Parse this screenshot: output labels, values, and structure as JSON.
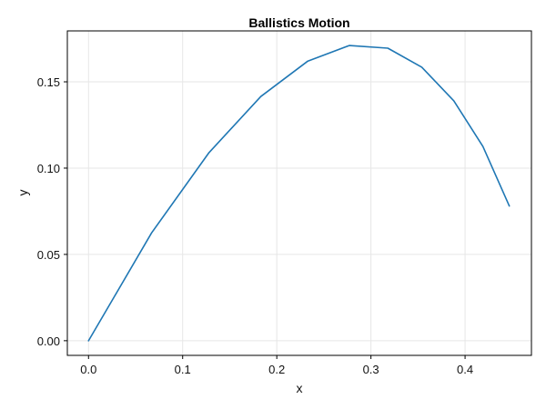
{
  "chart_data": {
    "type": "line",
    "title": "Ballistics Motion",
    "xlabel": "x",
    "ylabel": "y",
    "xlim": [
      -0.0225,
      0.4705
    ],
    "ylim": [
      -0.0085,
      0.1795
    ],
    "xticks": [
      0.0,
      0.1,
      0.2,
      0.3,
      0.4
    ],
    "xtick_labels": [
      "0.0",
      "0.1",
      "0.2",
      "0.3",
      "0.4"
    ],
    "yticks": [
      0.0,
      0.05,
      0.1,
      0.15
    ],
    "ytick_labels": [
      "0.00",
      "0.05",
      "0.10",
      "0.15"
    ],
    "grid": true,
    "legend": "none",
    "colors": {
      "series": "#1f77b4"
    },
    "series": [
      {
        "x": [
          0.0,
          0.067,
          0.128,
          0.183,
          0.233,
          0.277,
          0.318,
          0.354,
          0.388,
          0.419,
          0.447
        ],
        "y": [
          0.0,
          0.0625,
          0.109,
          0.1415,
          0.162,
          0.171,
          0.1695,
          0.1585,
          0.139,
          0.1125,
          0.078
        ]
      }
    ]
  }
}
